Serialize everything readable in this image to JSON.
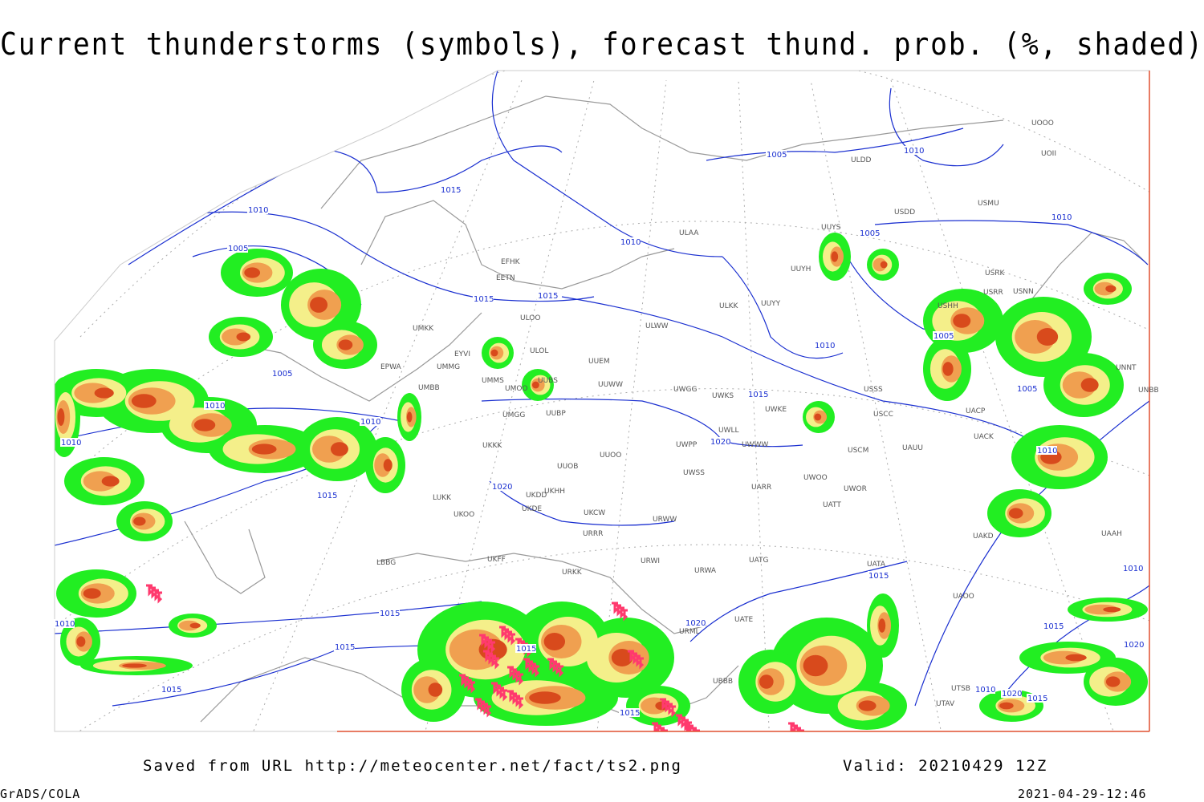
{
  "header": {
    "title": "Current thunderstorms (symbols), forecast thund. prob. (%, shaded)"
  },
  "footer": {
    "source": "Saved from URL http://meteocenter.net/fact/ts2.png",
    "valid": "Valid: 20210429 12Z",
    "software": "GrADS/COLA",
    "timestamp": "2021-04-29-12:46"
  },
  "stations": [
    "ULDD",
    "UOII",
    "UOOO",
    "USMU",
    "USDD",
    "UUYS",
    "ULAA",
    "UUYH",
    "ULKK",
    "UUYY",
    "ULWW",
    "USRK",
    "USRR",
    "USNN",
    "USHH",
    "EFHK",
    "EETN",
    "ULOO",
    "ULOL",
    "UMKK",
    "EYVI",
    "UUEM",
    "UMMG",
    "EPWA",
    "UMMS",
    "UUBS",
    "UUWW",
    "UWGG",
    "UWKS",
    "USSS",
    "UMOO",
    "UMBB",
    "UWKE",
    "USCC",
    "UACP",
    "UMGG",
    "UUBP",
    "UWLL",
    "UACK",
    "UKKK",
    "UUOO",
    "UWPP",
    "UWWW",
    "USCM",
    "UAUU",
    "UUOB",
    "UWSS",
    "UARR",
    "UWOO",
    "UWOR",
    "LUKK",
    "UKDD",
    "UKHH",
    "UKOO",
    "UKDE",
    "UKCW",
    "URWW",
    "UATT",
    "URRR",
    "UAKD",
    "LBBG",
    "UKFF",
    "URKK",
    "URWI",
    "URWA",
    "UATG",
    "UATA",
    "UAOO",
    "URML",
    "UATE",
    "UBBB",
    "UTSB",
    "UTAV",
    "UAAH",
    "UNNT",
    "UNBB"
  ],
  "isobar_labels": [
    "1015",
    "1005",
    "1010",
    "1010",
    "1005",
    "1010",
    "1015",
    "1015",
    "1005",
    "1010",
    "1005",
    "1010",
    "1005",
    "1010",
    "1010",
    "1010",
    "1015",
    "1020",
    "1005",
    "1010",
    "1020",
    "1015",
    "1015",
    "1015",
    "1015",
    "1015",
    "1010",
    "1015",
    "1020",
    "1015",
    "1010",
    "1015",
    "1020",
    "1010",
    "1020",
    "1015"
  ]
}
